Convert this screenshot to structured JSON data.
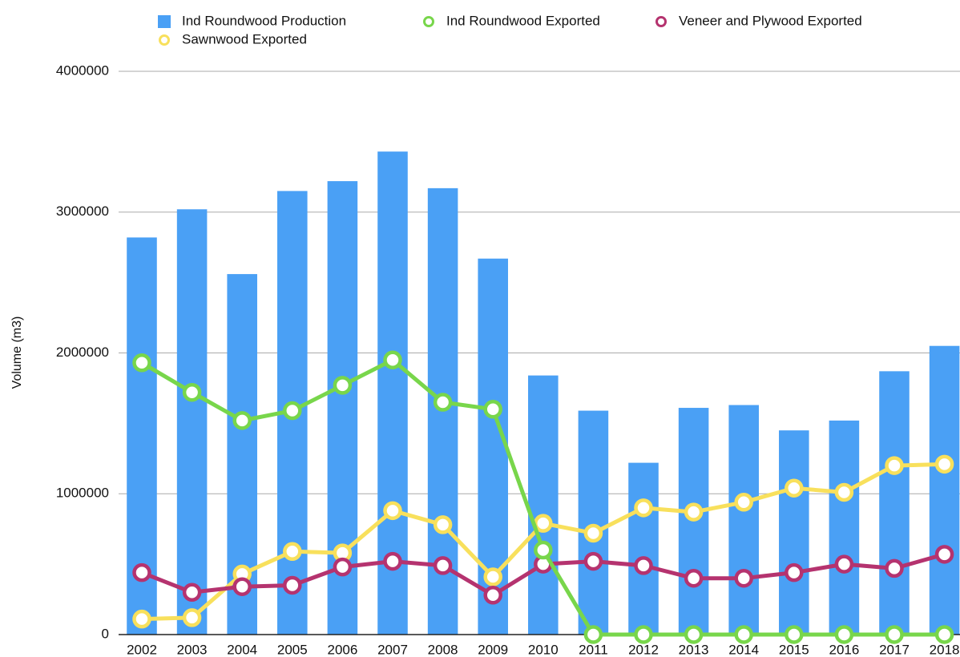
{
  "chart_data": {
    "type": "combo",
    "ylabel": "Volume (m3)",
    "categories": [
      "2002",
      "2003",
      "2004",
      "2005",
      "2006",
      "2007",
      "2008",
      "2009",
      "2010",
      "2011",
      "2012",
      "2013",
      "2014",
      "2015",
      "2016",
      "2017",
      "2018"
    ],
    "series": [
      {
        "name": "Ind Roundwood Production",
        "type": "bar",
        "color": "#4aa0f5",
        "values": [
          2820000,
          3020000,
          2560000,
          3150000,
          3220000,
          3430000,
          3170000,
          2670000,
          1840000,
          1590000,
          1220000,
          1610000,
          1630000,
          1450000,
          1520000,
          1870000,
          2050000
        ]
      },
      {
        "name": "Ind Roundwood Exported",
        "type": "line",
        "color": "#78d64b",
        "values": [
          1930000,
          1720000,
          1520000,
          1590000,
          1770000,
          1950000,
          1650000,
          1600000,
          600000,
          0,
          0,
          0,
          0,
          0,
          0,
          0,
          0
        ]
      },
      {
        "name": "Veneer and Plywood Exported",
        "type": "line",
        "color": "#b5336f",
        "values": [
          440000,
          300000,
          340000,
          350000,
          480000,
          520000,
          490000,
          280000,
          500000,
          520000,
          490000,
          400000,
          400000,
          440000,
          500000,
          470000,
          570000
        ]
      },
      {
        "name": "Sawnwood Exported",
        "type": "line",
        "color": "#f8e05c",
        "values": [
          110000,
          120000,
          430000,
          590000,
          580000,
          880000,
          780000,
          410000,
          790000,
          720000,
          900000,
          870000,
          940000,
          1040000,
          1010000,
          1200000,
          1210000
        ]
      }
    ],
    "ylim": [
      0,
      4000000
    ],
    "yticks": [
      0,
      1000000,
      2000000,
      3000000,
      4000000
    ],
    "grid": true,
    "legend": "top"
  }
}
